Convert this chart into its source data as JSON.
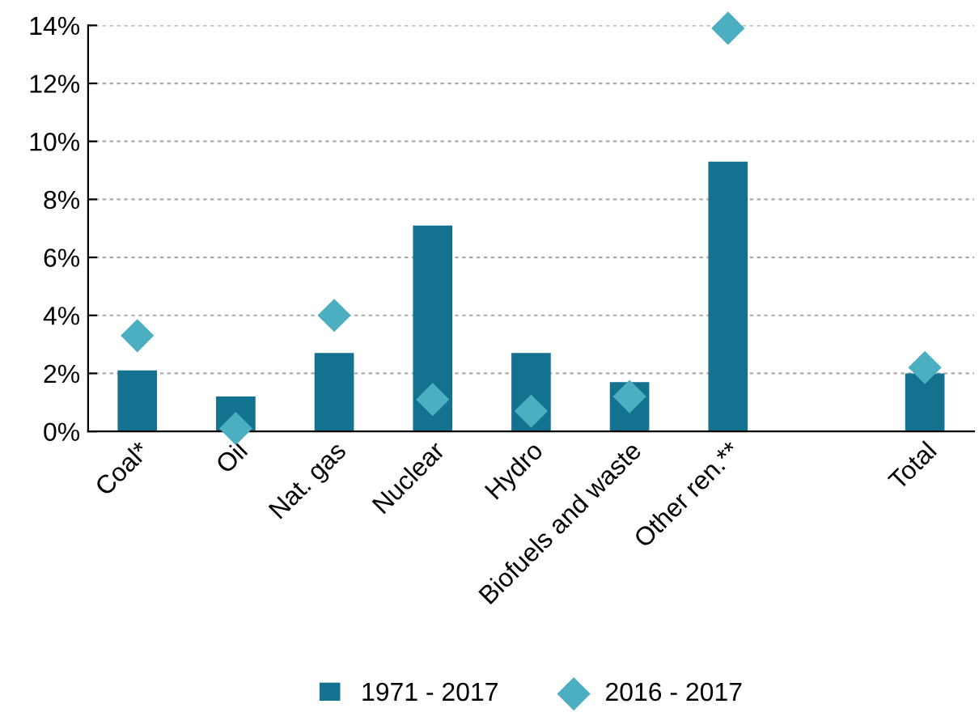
{
  "chart_data": {
    "type": "bar",
    "categories": [
      "Coal*",
      "Oil",
      "Nat. gas",
      "Nuclear",
      "Hydro",
      "Biofuels and waste",
      "Other ren.**",
      null,
      "Total"
    ],
    "series": [
      {
        "name": "1971 - 2017",
        "color": "#13728f",
        "values": [
          2.1,
          1.2,
          2.7,
          7.1,
          2.7,
          1.7,
          9.3,
          null,
          2.0
        ]
      },
      {
        "name": "2016 - 2017",
        "type": "scatter",
        "marker": "diamond",
        "color": "#4bafc1",
        "values": [
          3.3,
          0.1,
          4.0,
          1.1,
          0.7,
          1.2,
          13.9,
          null,
          2.2
        ]
      }
    ],
    "ylim": [
      0,
      14
    ],
    "yticks": [
      {
        "value": 0,
        "label": "0%"
      },
      {
        "value": 2,
        "label": "2%"
      },
      {
        "value": 4,
        "label": "4%"
      },
      {
        "value": 6,
        "label": "6%"
      },
      {
        "value": 8,
        "label": "8%"
      },
      {
        "value": 10,
        "label": "10%"
      },
      {
        "value": 12,
        "label": "12%"
      },
      {
        "value": 14,
        "label": "14%"
      }
    ],
    "grid": "y",
    "legend": "bottom"
  }
}
